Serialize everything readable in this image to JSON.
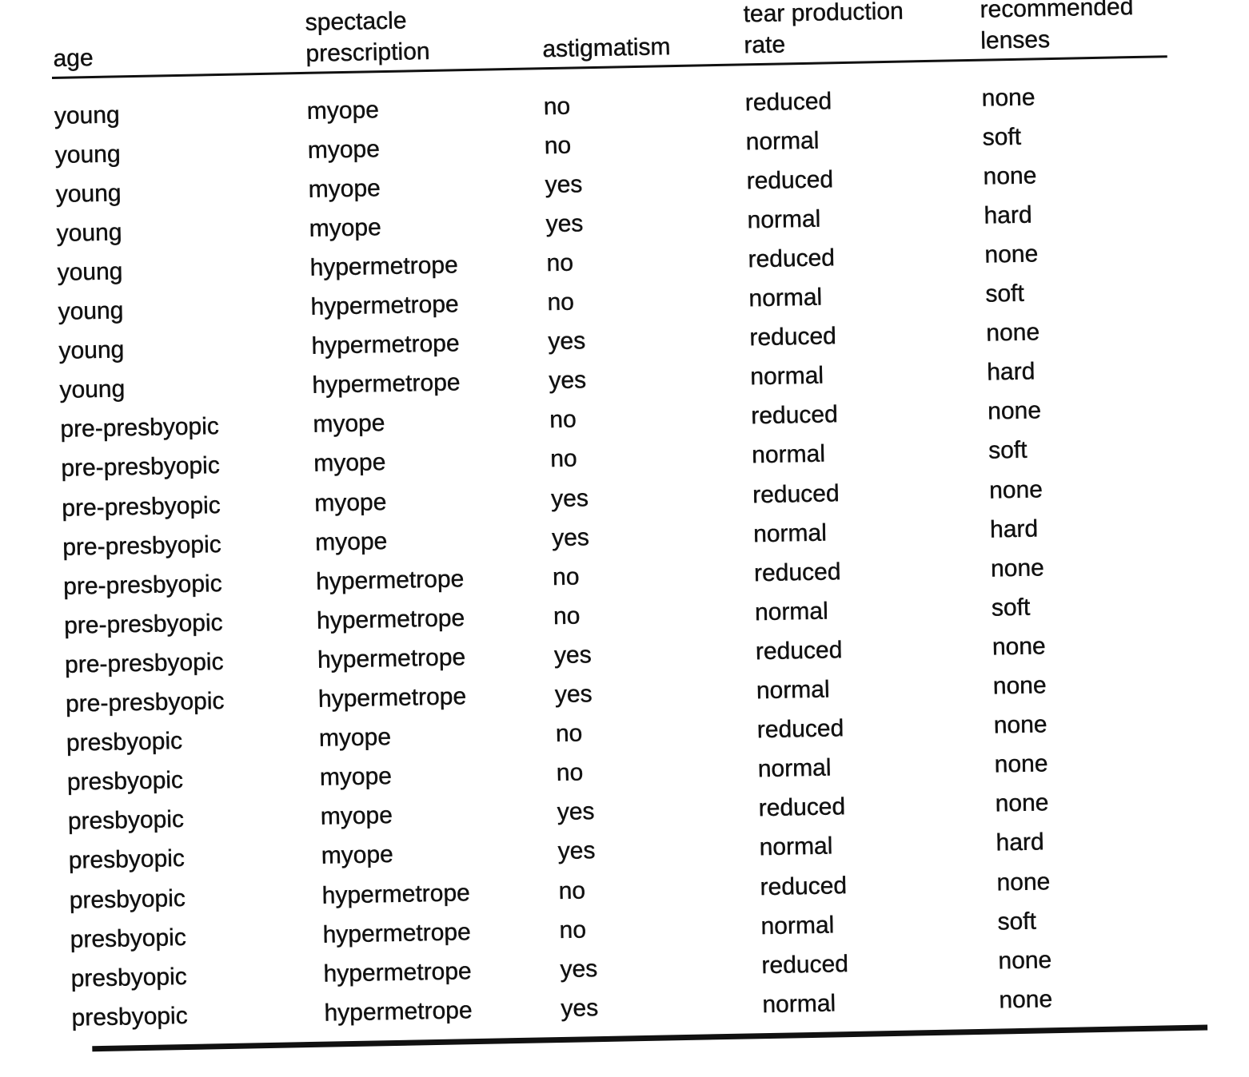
{
  "headers": [
    [
      "age"
    ],
    [
      "spectacle",
      "prescription"
    ],
    [
      "astigmatism"
    ],
    [
      "tear production",
      "rate"
    ],
    [
      "recommended",
      "lenses"
    ]
  ],
  "rows": [
    [
      "young",
      "myope",
      "no",
      "reduced",
      "none"
    ],
    [
      "young",
      "myope",
      "no",
      "normal",
      "soft"
    ],
    [
      "young",
      "myope",
      "yes",
      "reduced",
      "none"
    ],
    [
      "young",
      "myope",
      "yes",
      "normal",
      "hard"
    ],
    [
      "young",
      "hypermetrope",
      "no",
      "reduced",
      "none"
    ],
    [
      "young",
      "hypermetrope",
      "no",
      "normal",
      "soft"
    ],
    [
      "young",
      "hypermetrope",
      "yes",
      "reduced",
      "none"
    ],
    [
      "young",
      "hypermetrope",
      "yes",
      "normal",
      "hard"
    ],
    [
      "pre-presbyopic",
      "myope",
      "no",
      "reduced",
      "none"
    ],
    [
      "pre-presbyopic",
      "myope",
      "no",
      "normal",
      "soft"
    ],
    [
      "pre-presbyopic",
      "myope",
      "yes",
      "reduced",
      "none"
    ],
    [
      "pre-presbyopic",
      "myope",
      "yes",
      "normal",
      "hard"
    ],
    [
      "pre-presbyopic",
      "hypermetrope",
      "no",
      "reduced",
      "none"
    ],
    [
      "pre-presbyopic",
      "hypermetrope",
      "no",
      "normal",
      "soft"
    ],
    [
      "pre-presbyopic",
      "hypermetrope",
      "yes",
      "reduced",
      "none"
    ],
    [
      "pre-presbyopic",
      "hypermetrope",
      "yes",
      "normal",
      "none"
    ],
    [
      "presbyopic",
      "myope",
      "no",
      "reduced",
      "none"
    ],
    [
      "presbyopic",
      "myope",
      "no",
      "normal",
      "none"
    ],
    [
      "presbyopic",
      "myope",
      "yes",
      "reduced",
      "none"
    ],
    [
      "presbyopic",
      "myope",
      "yes",
      "normal",
      "hard"
    ],
    [
      "presbyopic",
      "hypermetrope",
      "no",
      "reduced",
      "none"
    ],
    [
      "presbyopic",
      "hypermetrope",
      "no",
      "normal",
      "soft"
    ],
    [
      "presbyopic",
      "hypermetrope",
      "yes",
      "reduced",
      "none"
    ],
    [
      "presbyopic",
      "hypermetrope",
      "yes",
      "normal",
      "none"
    ]
  ]
}
